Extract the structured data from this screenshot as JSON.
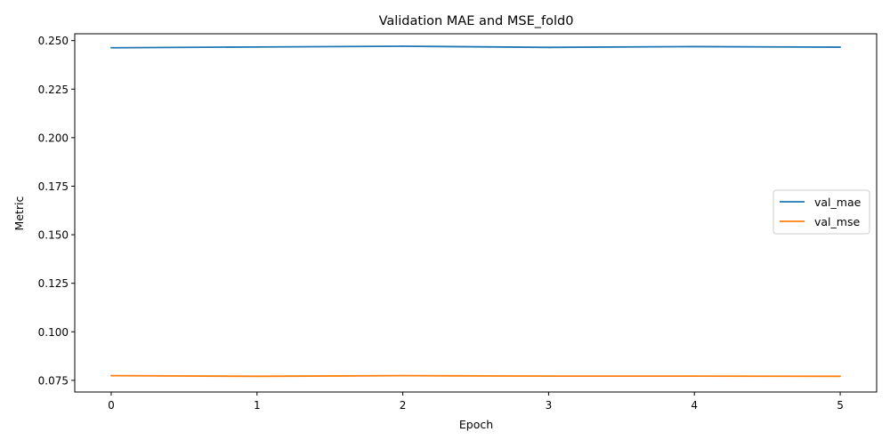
{
  "chart_data": {
    "type": "line",
    "title": "Validation MAE and MSE_fold0",
    "xlabel": "Epoch",
    "ylabel": "Metric",
    "x": [
      0,
      1,
      2,
      3,
      4,
      5
    ],
    "x_ticks": [
      0,
      1,
      2,
      3,
      4,
      5
    ],
    "x_tick_labels": [
      "0",
      "1",
      "2",
      "3",
      "4",
      "5"
    ],
    "xlim": [
      -0.25,
      5.25
    ],
    "y_ticks": [
      0.075,
      0.1,
      0.125,
      0.15,
      0.175,
      0.2,
      0.225,
      0.25
    ],
    "y_tick_labels": [
      "0.075",
      "0.100",
      "0.125",
      "0.150",
      "0.175",
      "0.200",
      "0.225",
      "0.250"
    ],
    "ylim": [
      0.069,
      0.2535
    ],
    "grid": false,
    "legend_position": "center-right",
    "series": [
      {
        "name": "val_mae",
        "color": "#1f77b4",
        "values": [
          0.2463,
          0.2467,
          0.2471,
          0.2465,
          0.2469,
          0.2466
        ]
      },
      {
        "name": "val_mse",
        "color": "#ff7f0e",
        "values": [
          0.0774,
          0.0771,
          0.0774,
          0.0772,
          0.0772,
          0.0771
        ]
      }
    ]
  }
}
